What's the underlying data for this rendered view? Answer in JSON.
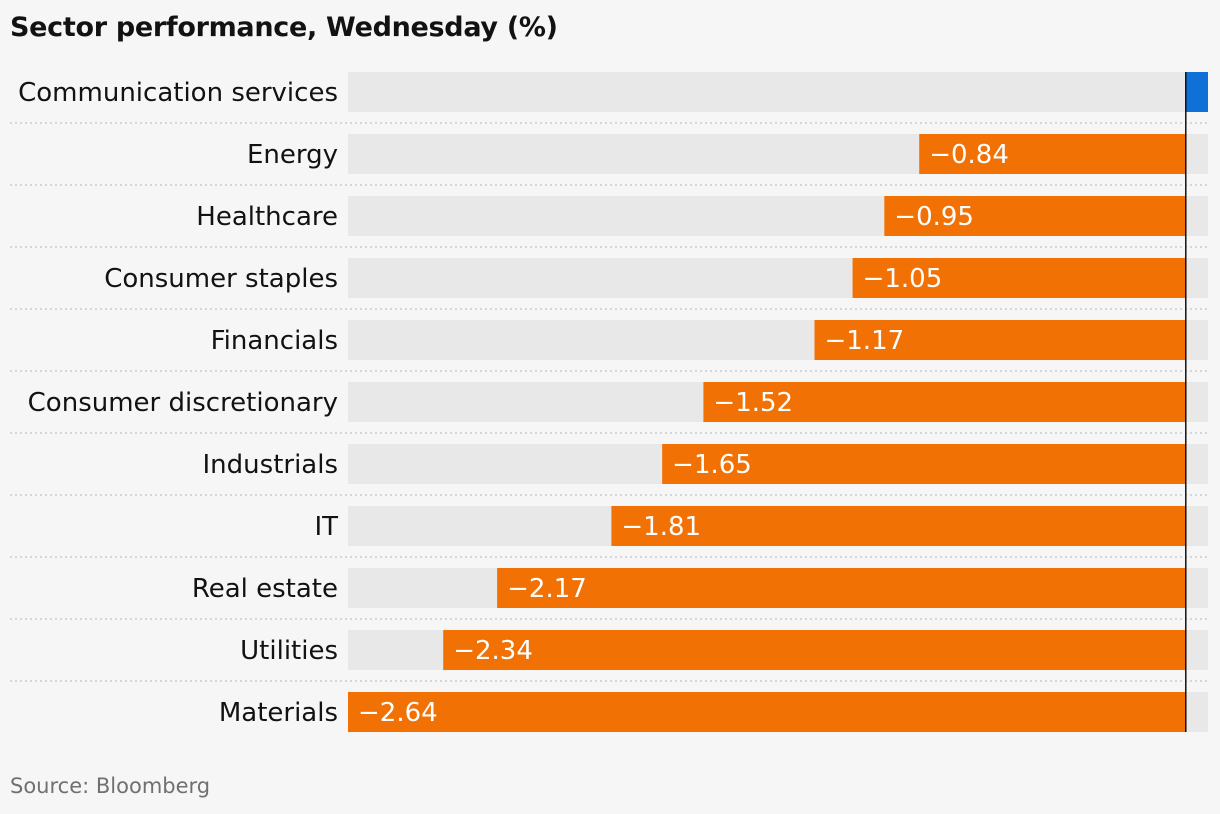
{
  "chart_data": {
    "type": "bar",
    "orientation": "horizontal",
    "title": "Sector performance, Wednesday (%)",
    "categories": [
      "Communication services",
      "Energy",
      "Healthcare",
      "Consumer staples",
      "Financials",
      "Consumer discretionary",
      "Industrials",
      "IT",
      "Real estate",
      "Utilities",
      "Materials"
    ],
    "values": [
      0.07,
      -0.84,
      -0.95,
      -1.05,
      -1.17,
      -1.52,
      -1.65,
      -1.81,
      -2.17,
      -2.34,
      -2.64
    ],
    "labels": [
      "",
      "−0.84",
      "−0.95",
      "−1.05",
      "−1.17",
      "−1.52",
      "−1.65",
      "−1.81",
      "−2.17",
      "−2.34",
      "−2.64"
    ],
    "xlim": [
      -2.64,
      0.07
    ],
    "grid": false,
    "colors": {
      "negative": "#f17105",
      "positive": "#0f70d7",
      "track": "#e8e8e8",
      "row_divider": "#cccccc",
      "zero_line": "#121212",
      "label_on_bar": "#ffffff"
    }
  },
  "footer": {
    "source": "Source: Bloomberg"
  }
}
